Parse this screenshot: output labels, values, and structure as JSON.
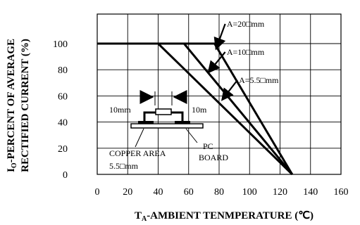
{
  "chart_data": {
    "type": "line",
    "xlabel_main": "T",
    "xlabel_sub": "A",
    "xlabel_rest": "-AMBIENT TENMPERATURE (℃)",
    "ylabel_line1_main": "I",
    "ylabel_line1_sub": "O",
    "ylabel_line1_rest": "-PERCENT OF AVERAGE",
    "ylabel_line2": "RECTIFIED CURRENT (%)",
    "xlim": [
      0,
      160
    ],
    "ylim": [
      0,
      100
    ],
    "x_ticks": [
      "0",
      "20",
      "40",
      "60",
      "80",
      "100",
      "120",
      "140",
      "160"
    ],
    "y_ticks": [
      "0",
      "20",
      "40",
      "60",
      "80",
      "100"
    ],
    "grid": true,
    "series": [
      {
        "name": "A=20□mm",
        "x": [
          0,
          77,
          128
        ],
        "y": [
          100,
          100,
          0
        ]
      },
      {
        "name": "A=10□mm",
        "x": [
          0,
          57,
          128
        ],
        "y": [
          100,
          100,
          0
        ]
      },
      {
        "name": "A=5.5□mm",
        "x": [
          0,
          40,
          128
        ],
        "y": [
          100,
          100,
          0
        ]
      }
    ],
    "inset_labels": {
      "left_dim": "10mm",
      "right_dim": "10m",
      "copper_area": "COPPER AREA",
      "copper_size": "5.5□mm",
      "pc_board_line1": "PC",
      "pc_board_line2": "BOARD"
    }
  }
}
